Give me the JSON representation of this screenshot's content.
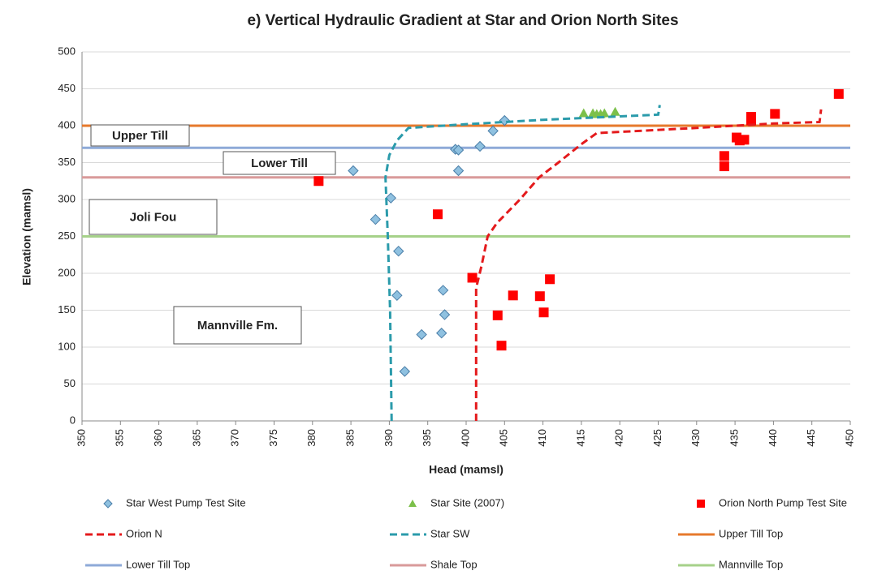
{
  "chart_data": {
    "type": "scatter",
    "title": "e) Vertical Hydraulic Gradient at Star and Orion North Sites",
    "x_label": "Head (mamsl)",
    "y_label": "Elevation (mamsl)",
    "xlim": [
      350,
      450
    ],
    "xticks": [
      350,
      355,
      360,
      365,
      370,
      375,
      380,
      385,
      390,
      395,
      400,
      405,
      410,
      415,
      420,
      425,
      430,
      435,
      440,
      445,
      450
    ],
    "ylim": [
      0,
      500
    ],
    "yticks": [
      0,
      50,
      100,
      150,
      200,
      250,
      300,
      350,
      400,
      450,
      500
    ],
    "grid": true,
    "annotations": [
      "Upper Till",
      "Lower Till",
      "Joli Fou",
      "Mannville Fm."
    ],
    "series": [
      {
        "name": "Star West Pump Test Site",
        "style": "markers",
        "marker": "diamond",
        "color": "#8fc1e0",
        "x": [
          385.3,
          388.2,
          390.2,
          391.2,
          391,
          392,
          394.2,
          396.8,
          397,
          397.2,
          398.6,
          399,
          399,
          401.8,
          403.5,
          405
        ],
        "values": [
          339,
          273,
          302,
          230,
          170,
          67,
          117,
          119,
          177,
          144,
          368,
          367,
          339,
          372,
          393,
          407
        ]
      },
      {
        "name": "Star Site (2007)",
        "style": "markers",
        "marker": "triangle",
        "color": "#7cc04a",
        "x": [
          415.3,
          416.5,
          417,
          417.5,
          418,
          419.4
        ],
        "values": [
          417,
          417,
          416,
          416,
          417,
          419
        ]
      },
      {
        "name": "Orion North Pump Test Site",
        "style": "markers",
        "marker": "square",
        "color": "#ff0000",
        "x": [
          380.8,
          396.3,
          400.8,
          404.1,
          404.6,
          406.1,
          409.6,
          410.1,
          410.9,
          433.6,
          433.6,
          435.2,
          435.6,
          436.2,
          437.1,
          437.1,
          440.2,
          448.5
        ],
        "values": [
          325,
          280,
          194,
          143,
          102,
          170,
          169,
          147,
          192,
          359,
          345,
          384,
          380,
          381,
          412,
          407,
          416,
          443
        ]
      },
      {
        "name": "Orion N",
        "style": "dashed",
        "color": "#e41a1c",
        "x": [
          401.3,
          401.3,
          402,
          402.8,
          404,
          407,
          409.5,
          412,
          415,
          417,
          430,
          440,
          446,
          446.2
        ],
        "values": [
          0,
          180,
          210,
          250,
          268,
          300,
          330,
          350,
          375,
          390,
          397,
          403,
          405,
          422
        ]
      },
      {
        "name": "Star SW",
        "style": "dashed",
        "color": "#2b9bab",
        "x": [
          390.3,
          390.1,
          389.8,
          389.5,
          390,
          391,
          392.5,
          400,
          410,
          425,
          425.2
        ],
        "values": [
          0,
          150,
          250,
          330,
          360,
          380,
          397,
          402,
          408,
          415,
          428
        ]
      },
      {
        "name": "Upper Till Top",
        "style": "hline",
        "color": "#e6792c",
        "value": 400
      },
      {
        "name": "Lower Till Top",
        "style": "hline",
        "color": "#8eaad8",
        "value": 370
      },
      {
        "name": "Shale Top",
        "style": "hline",
        "color": "#d99a9a",
        "value": 330
      },
      {
        "name": "Mannville Top",
        "style": "hline",
        "color": "#a6d18a",
        "value": 250
      }
    ]
  }
}
